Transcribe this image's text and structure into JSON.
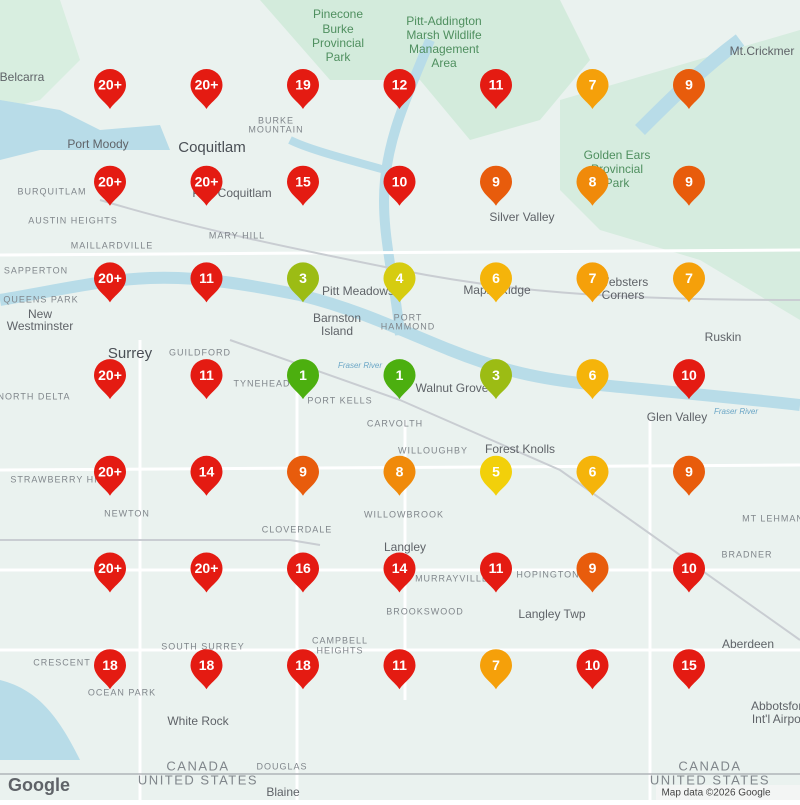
{
  "map": {
    "places": [
      "Pinecone",
      "Burke",
      "Provincial",
      "Park",
      "Pitt-Addington",
      "Marsh Wildlife",
      "Management",
      "Area",
      "Mt.Crickmer",
      "Belcarra",
      "Port Moody",
      "Coquitlam",
      "BURKE",
      "MOUNTAIN",
      "Golden Ears",
      "Provincial",
      "Park",
      "BURQUITLAM",
      "Port Coquitlam",
      "Silver Valley",
      "AUSTIN HEIGHTS",
      "MARY HILL",
      "MAILLARDVILLE",
      "New",
      "Westminster",
      "SAPPERTON",
      "QUEENS PARK",
      "Pitt Meadows",
      "Maple Ridge",
      "Websters",
      "Corners",
      "Barnston",
      "Island",
      "PORT",
      "HAMMOND",
      "Ruskin",
      "Surrey",
      "GUILDFORD",
      "NORTH DELTA",
      "TYNEHEAD",
      "PORT KELLS",
      "Walnut Grove",
      "Glen Valley",
      "CARVOLTH",
      "WILLOUGHBY",
      "Forest Knolls",
      "STRAWBERRY HILL",
      "NEWTON",
      "WILLOWBROOK",
      "MT LEHMAN",
      "CLOVERDALE",
      "Langley",
      "HOPINGTON",
      "BRADNER",
      "MURRAYVILLE",
      "BROOKSWOOD",
      "Langley Twp",
      "SOUTH SURREY",
      "CAMPBELL",
      "HEIGHTS",
      "CRESCENT",
      "Aberdeen",
      "OCEAN PARK",
      "White Rock",
      "Abbotsford",
      "Int'l Airport",
      "CANADA",
      "UNITED STATES",
      "DOUGLAS",
      "Blaine",
      "CANADA",
      "UNITED STATES",
      "Fraser River",
      "Fraser River"
    ],
    "logo": "Google",
    "attribution": "Map data ©2026 Google"
  },
  "markers": [
    [
      {
        "label": "20+",
        "color": "#e41b12"
      },
      {
        "label": "20+",
        "color": "#e41b12"
      },
      {
        "label": "19",
        "color": "#e41b12"
      },
      {
        "label": "12",
        "color": "#e41b12"
      },
      {
        "label": "11",
        "color": "#e41b12"
      },
      {
        "label": "7",
        "color": "#f5a00a"
      },
      {
        "label": "9",
        "color": "#e85c0c"
      }
    ],
    [
      {
        "label": "20+",
        "color": "#e41b12"
      },
      {
        "label": "20+",
        "color": "#e41b12"
      },
      {
        "label": "15",
        "color": "#e41b12"
      },
      {
        "label": "10",
        "color": "#e41b12"
      },
      {
        "label": "9",
        "color": "#e85c0c"
      },
      {
        "label": "8",
        "color": "#f08a0a"
      },
      {
        "label": "9",
        "color": "#e85c0c"
      }
    ],
    [
      {
        "label": "20+",
        "color": "#e41b12"
      },
      {
        "label": "11",
        "color": "#e41b12"
      },
      {
        "label": "3",
        "color": "#9cbc14"
      },
      {
        "label": "4",
        "color": "#d6cc10"
      },
      {
        "label": "6",
        "color": "#f5b40a"
      },
      {
        "label": "7",
        "color": "#f5a00a"
      },
      {
        "label": "7",
        "color": "#f5a00a"
      }
    ],
    [
      {
        "label": "20+",
        "color": "#e41b12"
      },
      {
        "label": "11",
        "color": "#e41b12"
      },
      {
        "label": "1",
        "color": "#4caf0f"
      },
      {
        "label": "1",
        "color": "#4caf0f"
      },
      {
        "label": "3",
        "color": "#9cbc14"
      },
      {
        "label": "6",
        "color": "#f5b40a"
      },
      {
        "label": "10",
        "color": "#e41b12"
      }
    ],
    [
      {
        "label": "20+",
        "color": "#e41b12"
      },
      {
        "label": "14",
        "color": "#e41b12"
      },
      {
        "label": "9",
        "color": "#e85c0c"
      },
      {
        "label": "8",
        "color": "#f08a0a"
      },
      {
        "label": "5",
        "color": "#f2d00a"
      },
      {
        "label": "6",
        "color": "#f5b40a"
      },
      {
        "label": "9",
        "color": "#e85c0c"
      }
    ],
    [
      {
        "label": "20+",
        "color": "#e41b12"
      },
      {
        "label": "20+",
        "color": "#e41b12"
      },
      {
        "label": "16",
        "color": "#e41b12"
      },
      {
        "label": "14",
        "color": "#e41b12"
      },
      {
        "label": "11",
        "color": "#e41b12"
      },
      {
        "label": "9",
        "color": "#e85c0c"
      },
      {
        "label": "10",
        "color": "#e41b12"
      }
    ],
    [
      {
        "label": "18",
        "color": "#e41b12"
      },
      {
        "label": "18",
        "color": "#e41b12"
      },
      {
        "label": "18",
        "color": "#e41b12"
      },
      {
        "label": "11",
        "color": "#e41b12"
      },
      {
        "label": "7",
        "color": "#f5a00a"
      },
      {
        "label": "10",
        "color": "#e41b12"
      },
      {
        "label": "15",
        "color": "#e41b12"
      }
    ]
  ]
}
